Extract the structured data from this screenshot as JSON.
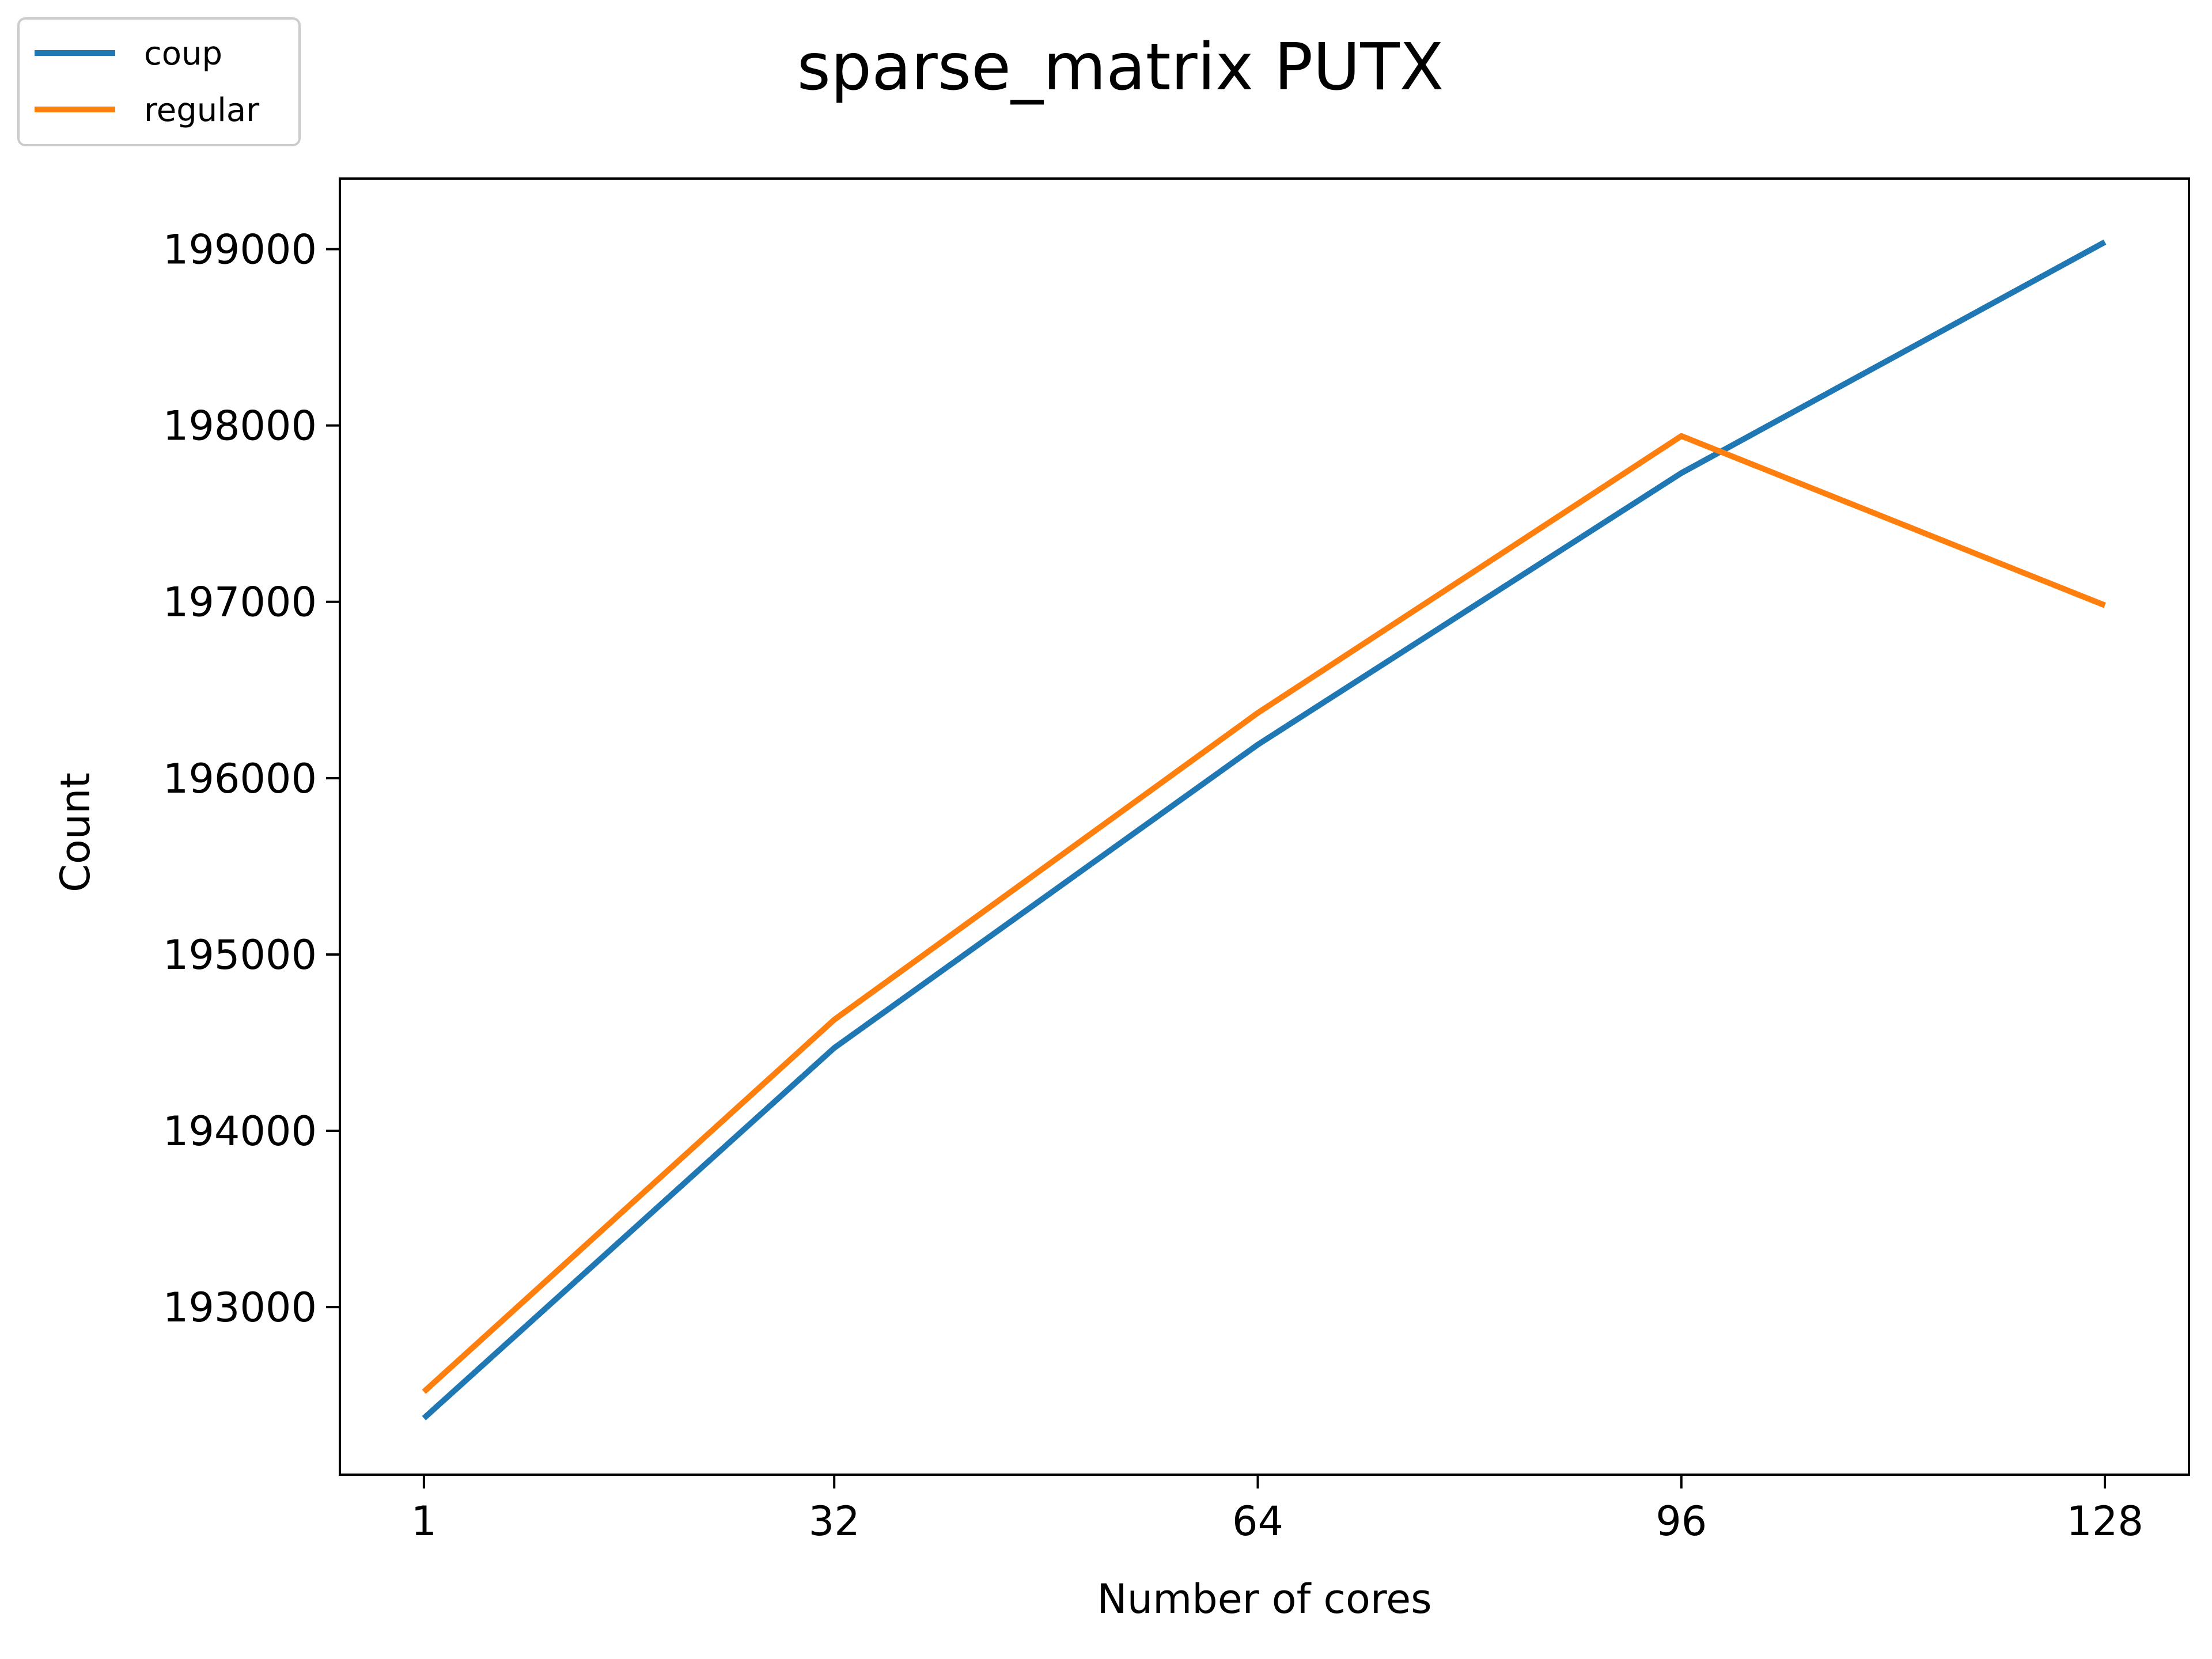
{
  "chart_data": {
    "type": "line",
    "title": "sparse_matrix PUTX",
    "xlabel": "Number of cores",
    "ylabel": "Count",
    "x": [
      1,
      32,
      64,
      96,
      128
    ],
    "x_ticks": [
      1,
      32,
      64,
      96,
      128
    ],
    "y_ticks": [
      193000,
      194000,
      195000,
      196000,
      197000,
      198000,
      199000
    ],
    "xlim": [
      -5.35,
      134.35
    ],
    "ylim": [
      192050,
      199400
    ],
    "grid": false,
    "legend_position": "top-left",
    "series": [
      {
        "name": "coup",
        "color": "#1f77b4",
        "values": [
          192370,
          194470,
          196190,
          197730,
          199040
        ]
      },
      {
        "name": "regular",
        "color": "#ff7f0e",
        "values": [
          192520,
          194630,
          196370,
          197940,
          196980
        ]
      }
    ]
  }
}
